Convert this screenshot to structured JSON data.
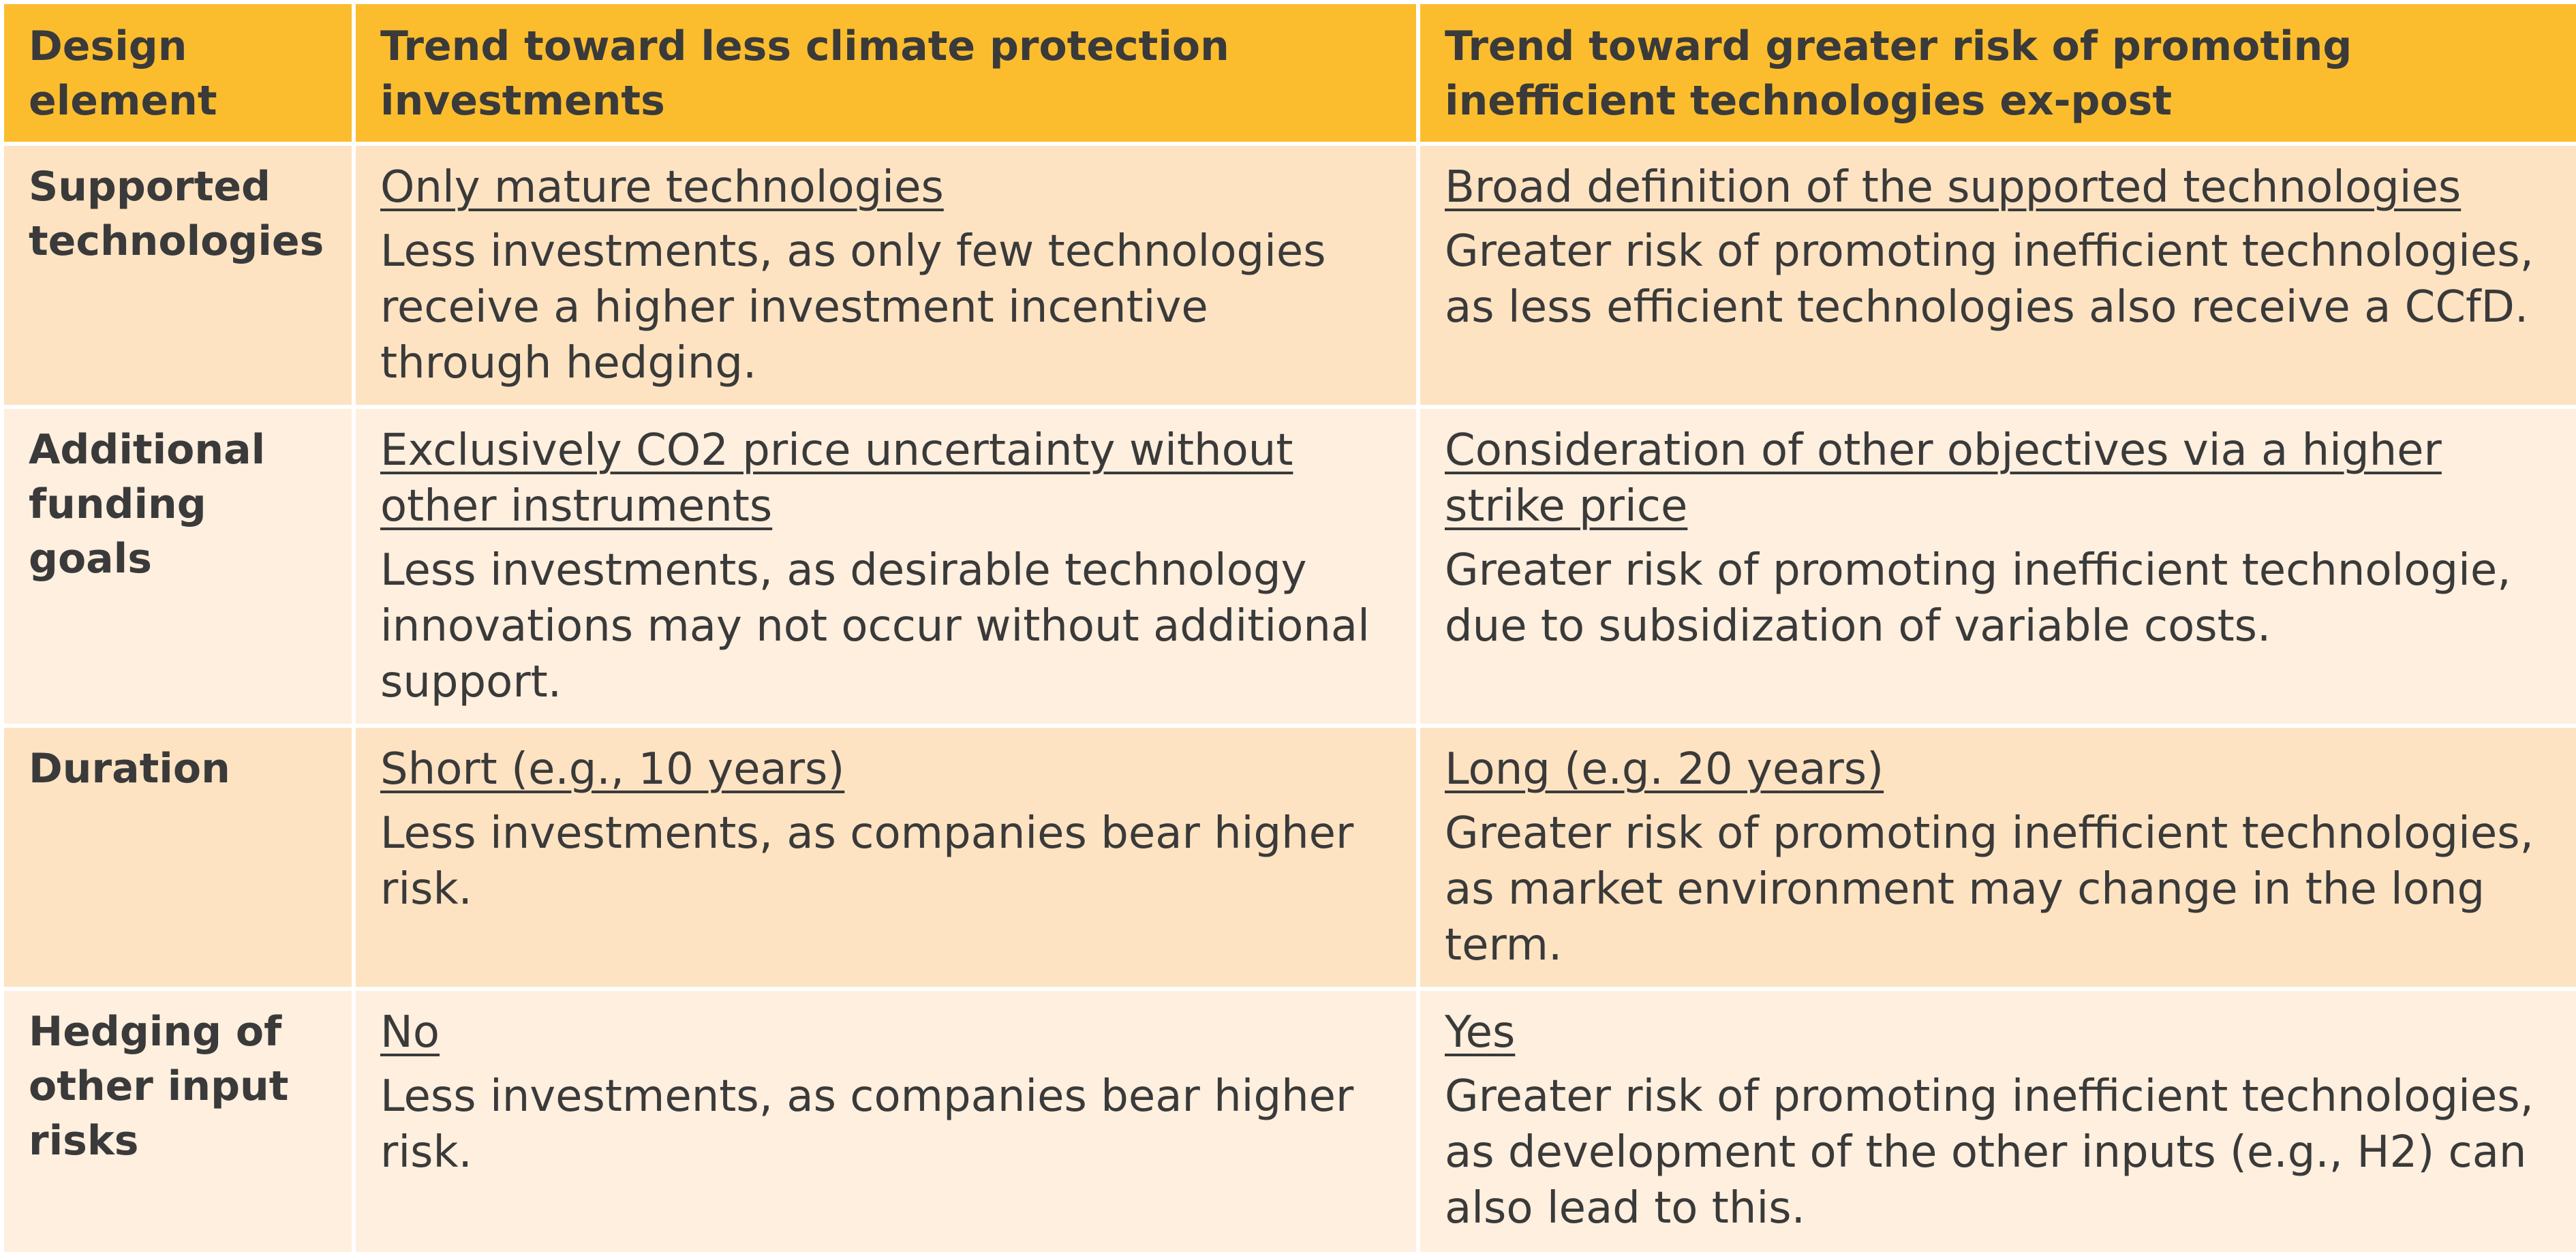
{
  "table": {
    "headers": [
      "Design element",
      "Trend toward less climate protection investments",
      "Trend toward greater risk of promoting inefficient technologies ex-post"
    ],
    "rows": [
      {
        "element": "Supported technologies",
        "less_option": "Only mature technologies",
        "less_effect": "Less investments, as only few technologies receive a higher investment incentive through hedging.",
        "risk_option": "Broad definition of the supported technologies",
        "risk_effect": "Greater risk of promoting inefficient technologies, as less efficient technologies also receive a CCfD."
      },
      {
        "element": "Additional funding goals",
        "less_option": "Exclusively CO2 price uncertainty without other instruments",
        "less_effect": "Less investments, as desirable technology innovations may not occur without additional support.",
        "risk_option": "Consideration of other objectives via a higher strike price",
        "risk_effect": "Greater risk of promoting inefficient technologie, due to subsidization of variable costs."
      },
      {
        "element": "Duration",
        "less_option": "Short (e.g., 10 years)",
        "less_effect": "Less investments, as companies bear higher risk.",
        "risk_option": "Long (e.g. 20 years)",
        "risk_effect": "Greater risk of promoting inefficient technologies, as market environment may change in the long term."
      },
      {
        "element": "Hedging of other input risks",
        "less_option": "No",
        "less_effect": "Less investments, as companies bear higher risk.",
        "risk_option": "Yes",
        "risk_effect": "Greater risk of promoting inefficient technologies, as development of the other inputs (e.g., H2) can also lead to this."
      }
    ]
  },
  "colors": {
    "header_bg": "#fbbd2e",
    "row_shade_a": "#fde3c2",
    "row_shade_b": "#feefde",
    "text": "#3a3a3a"
  }
}
